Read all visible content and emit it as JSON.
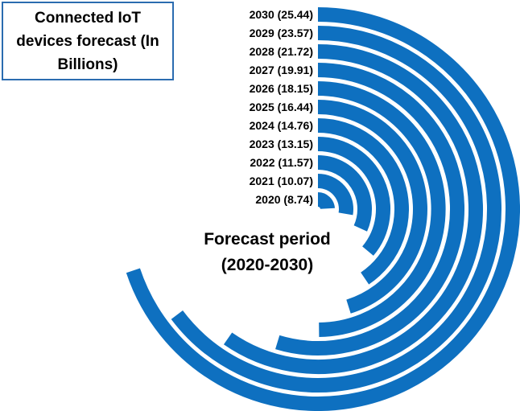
{
  "title": "Connected IoT\ndevices forecast (In\nBillions)",
  "center_label": "Forecast period\n(2020-2030)",
  "colors": {
    "bar": "#0e70c0",
    "background": "#ffffff"
  },
  "chart_data": {
    "type": "radial-bar",
    "title": "Connected IoT devices forecast (In Billions)",
    "categories": [
      "2020",
      "2021",
      "2022",
      "2023",
      "2024",
      "2025",
      "2026",
      "2027",
      "2028",
      "2029",
      "2030"
    ],
    "values": [
      8.74,
      10.07,
      11.57,
      13.15,
      14.76,
      16.44,
      18.15,
      19.91,
      21.72,
      23.57,
      25.44
    ],
    "labels": [
      "2020 (8.74)",
      "2021 (10.07)",
      "2022 (11.57)",
      "2023 (13.15)",
      "2024 (14.76)",
      "2025 (16.44)",
      "2026 (18.15)",
      "2027 (19.91)",
      "2028 (21.72)",
      "2029 (23.57)",
      "2030 (25.44)"
    ],
    "xlabel": "Forecast period (2020-2030)"
  }
}
